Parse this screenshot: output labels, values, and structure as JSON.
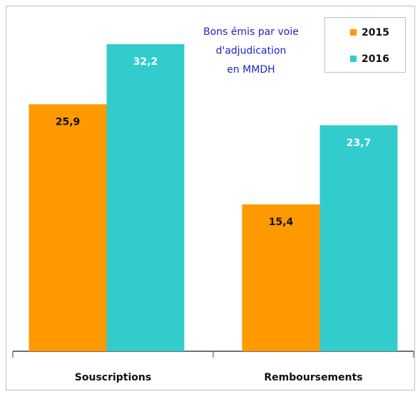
{
  "chart_data": {
    "type": "bar",
    "title": [
      "Bons émis par voie",
      "d'adjudication",
      "en MMDH"
    ],
    "categories": [
      "Souscriptions",
      "Remboursements"
    ],
    "series": [
      {
        "name": "2015",
        "color": "#ff9900",
        "values": [
          25.9,
          15.4
        ],
        "value_labels": [
          "25,9",
          "15,4"
        ]
      },
      {
        "name": "2016",
        "color": "#33cccc",
        "values": [
          32.2,
          23.7
        ],
        "value_labels": [
          "32,2",
          "23,7"
        ]
      }
    ],
    "legend": "top-right"
  }
}
